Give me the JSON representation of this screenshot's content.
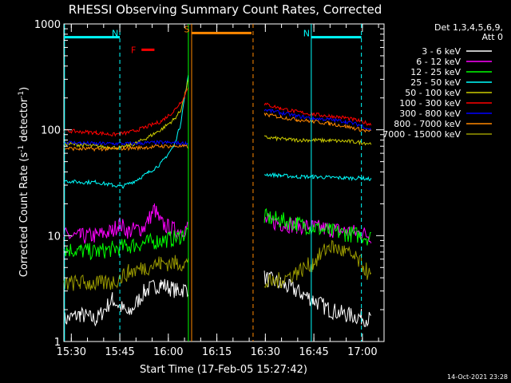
{
  "chart_data": {
    "type": "line",
    "title": "RHESSI Observing Summary Count Rates, Corrected",
    "xlabel": "Start Time (17-Feb-05 15:27:42)",
    "ylabel_main": "Corrected Count Rate (s",
    "ylabel_exp1": "-1",
    "ylabel_mid": " detector",
    "ylabel_exp2": "-1",
    "ylabel_end": ")",
    "footer": "14-Oct-2021 23:28",
    "y_scale": "log",
    "ylim": [
      1,
      1000
    ],
    "xlim_minutes": [
      0,
      99
    ],
    "x_ticks": [
      {
        "label": "15:30",
        "min": 2.3
      },
      {
        "label": "15:45",
        "min": 17.3
      },
      {
        "label": "16:00",
        "min": 32.3
      },
      {
        "label": "16:15",
        "min": 47.3
      },
      {
        "label": "16:30",
        "min": 62.3
      },
      {
        "label": "16:45",
        "min": 77.3
      },
      {
        "label": "17:00",
        "min": 92.3
      }
    ],
    "y_ticks": [
      {
        "label": "1",
        "value": 1
      },
      {
        "label": "10",
        "value": 10
      },
      {
        "label": "100",
        "value": 100
      },
      {
        "label": "1000",
        "value": 1000
      }
    ],
    "legend_header": [
      "Det 1,3,4,5,6,9,",
      "Att 0"
    ],
    "series": [
      {
        "name": "3 - 6 keV",
        "color": "#ffffff",
        "x": [
          0,
          5,
          10,
          15,
          20,
          25,
          30,
          35,
          38.5,
          58.5,
          62,
          67,
          72,
          77,
          82,
          87,
          92,
          95
        ],
        "y": [
          1.6,
          1.8,
          1.6,
          2.5,
          1.8,
          3,
          3.5,
          3,
          3.2,
          null,
          4,
          3.5,
          3,
          2.5,
          2,
          1.8,
          1.7,
          1.6
        ]
      },
      {
        "name": "6 - 12 keV",
        "color": "#ff00ff",
        "x": [
          0,
          5,
          10,
          15,
          17,
          20,
          25,
          28,
          30,
          35,
          38.5,
          58.5,
          62,
          67,
          72,
          77,
          82,
          87,
          92,
          95
        ],
        "y": [
          10,
          9.8,
          10,
          11,
          13,
          11,
          12,
          18,
          13,
          11,
          12,
          null,
          14,
          13,
          12.5,
          12,
          11.5,
          11,
          10.5,
          10
        ]
      },
      {
        "name": "12 - 25 keV",
        "color": "#00ff00",
        "x": [
          0,
          5,
          10,
          15,
          20,
          25,
          30,
          35,
          38.5,
          58.5,
          62,
          67,
          72,
          77,
          82,
          87,
          92,
          95
        ],
        "y": [
          7.5,
          7.2,
          7,
          7.5,
          8,
          8.5,
          9,
          9.5,
          11,
          null,
          15,
          14,
          13,
          12,
          11,
          10.5,
          10,
          9.5
        ]
      },
      {
        "name": "25 - 50 keV",
        "color": "#00ffff",
        "x": [
          0,
          5,
          10,
          15,
          18,
          22,
          26,
          30,
          34,
          36,
          37.5,
          38.5,
          58.5,
          62,
          67,
          72,
          77,
          82,
          87,
          92,
          95
        ],
        "y": [
          33,
          32,
          32,
          30,
          29,
          33,
          39,
          48,
          70,
          110,
          220,
          320,
          null,
          38,
          37,
          36,
          36,
          35.5,
          35,
          35,
          34
        ]
      },
      {
        "name": "50 - 100 keV",
        "color": "#cccc00",
        "x": [
          0,
          5,
          10,
          15,
          18,
          22,
          26,
          30,
          34,
          36,
          37.5,
          38.5,
          58.5,
          62,
          67,
          72,
          77,
          82,
          87,
          92,
          95
        ],
        "y": [
          74,
          72,
          70,
          68,
          68,
          74,
          85,
          100,
          125,
          150,
          220,
          300,
          null,
          85,
          82,
          80,
          80,
          79,
          78,
          76,
          74
        ]
      },
      {
        "name": "100 - 300 keV",
        "color": "#ff0000",
        "x": [
          0,
          5,
          10,
          15,
          20,
          25,
          30,
          34,
          37,
          38.5,
          58.5,
          62,
          67,
          72,
          77,
          82,
          87,
          92,
          95
        ],
        "y": [
          98,
          96,
          94,
          90,
          94,
          105,
          120,
          150,
          200,
          260,
          null,
          175,
          160,
          148,
          140,
          135,
          130,
          120,
          112
        ]
      },
      {
        "name": "300 - 800 keV",
        "color": "#0000ff",
        "x": [
          0,
          5,
          10,
          15,
          20,
          25,
          30,
          35,
          38.5,
          58.5,
          62,
          67,
          72,
          77,
          82,
          87,
          92,
          95
        ],
        "y": [
          76,
          75,
          74,
          74,
          74,
          75,
          76,
          75,
          74,
          null,
          155,
          145,
          135,
          128,
          125,
          120,
          110,
          100
        ]
      },
      {
        "name": "800 - 7000 keV",
        "color": "#ff8800",
        "x": [
          0,
          5,
          10,
          15,
          20,
          25,
          30,
          35,
          38.5,
          58.5,
          62,
          67,
          72,
          77,
          82,
          87,
          92,
          95
        ],
        "y": [
          67,
          66,
          66,
          66,
          67,
          68,
          70,
          70,
          69,
          null,
          140,
          132,
          125,
          120,
          115,
          108,
          100,
          96
        ]
      },
      {
        "name": "7000 - 15000 keV",
        "color": "#999900",
        "x": [
          0,
          5,
          10,
          15,
          20,
          25,
          30,
          35,
          38.5,
          58.5,
          62,
          67,
          72,
          77,
          82,
          87,
          92,
          95
        ],
        "y": [
          3.5,
          3.6,
          3.5,
          3.6,
          4.5,
          5,
          5.5,
          5.5,
          5.5,
          null,
          3.5,
          3.8,
          4.5,
          5.5,
          8,
          7,
          5.5,
          4
        ]
      }
    ],
    "markers": [
      {
        "label": "N",
        "color": "#00ffff",
        "x": 17.3,
        "dashed": true,
        "span": [
          0,
          17.3
        ],
        "bar_y": 750
      },
      {
        "label": "N",
        "color": "#00ffff",
        "x": 76.5,
        "dashed": false,
        "span": [
          76.5,
          92
        ],
        "bar_y": 750
      },
      {
        "label": "F",
        "color": "#ff0000",
        "span": [
          24,
          28
        ],
        "bar_y": 570
      },
      {
        "label": "S",
        "color": "#ff8800",
        "x": 39.5,
        "dashed": false,
        "span": [
          39.5,
          58
        ],
        "bar_y": 820
      }
    ],
    "vlines": [
      {
        "color": "#00ffff",
        "x": 0.2,
        "dashed": false
      },
      {
        "color": "#00ffff",
        "x": 17.3,
        "dashed": true
      },
      {
        "color": "#00ff00",
        "x": 38.5,
        "dashed": false
      },
      {
        "color": "#ff8800",
        "x": 39.5,
        "dashed": false
      },
      {
        "color": "#ff8800",
        "x": 58.5,
        "dashed": true
      },
      {
        "color": "#00ffff",
        "x": 76.5,
        "dashed": false
      },
      {
        "color": "#00ffff",
        "x": 92,
        "dashed": true
      }
    ]
  }
}
